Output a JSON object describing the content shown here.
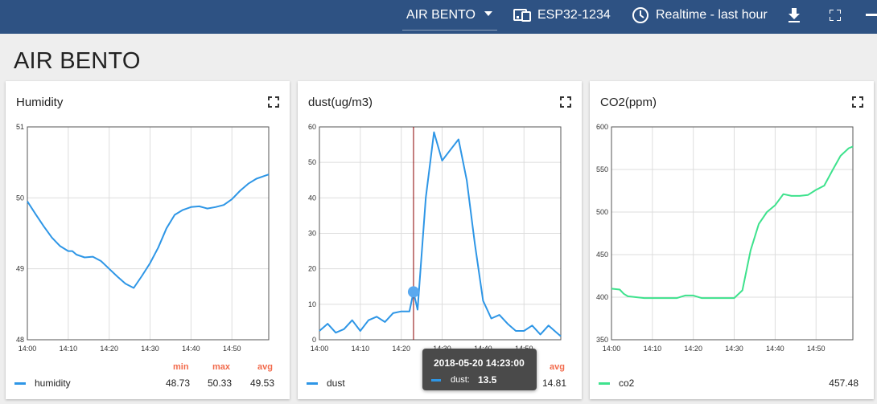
{
  "topbar": {
    "dashboard": "AIR BENTO",
    "device": "ESP32-1234",
    "timerange": "Realtime - last hour",
    "icons": {
      "dashboard": "chevron-down-icon",
      "device": "device-icon",
      "time": "clock-icon",
      "download": "download-icon",
      "fullscreen": "fullscreen-icon",
      "more": "more-icon"
    }
  },
  "page": {
    "title": "AIR BENTO"
  },
  "colors": {
    "header": "#2e5283",
    "blue": "#2e96e6",
    "green": "#3ee28d",
    "stat_head": "#f26a4b",
    "cursor": "#8b0000"
  },
  "cards": [
    {
      "title": "Humidity",
      "legend": {
        "name": "humidity",
        "min_label": "min",
        "max_label": "max",
        "avg_label": "avg",
        "min": "48.73",
        "max": "50.33",
        "avg": "49.53"
      }
    },
    {
      "title": "dust(ug/m3)",
      "legend": {
        "name": "dust",
        "avg_label": "avg",
        "avg": "14.81"
      },
      "tooltip": {
        "time": "2018-05-20 14:23:00",
        "name": "dust:",
        "value": "13.5"
      }
    },
    {
      "title": "CO2(ppm)",
      "legend": {
        "name": "co2",
        "avg": "457.48"
      }
    }
  ],
  "chart_data": [
    {
      "type": "line",
      "title": "Humidity",
      "x_ticks": [
        "14:00",
        "14:10",
        "14:20",
        "14:30",
        "14:40",
        "14:50"
      ],
      "y_ticks": [
        48,
        49,
        50,
        51
      ],
      "xlim": [
        0,
        59
      ],
      "ylim": [
        48,
        51
      ],
      "grid": true,
      "series": [
        {
          "name": "humidity",
          "x": [
            0,
            2,
            4,
            6,
            8,
            10,
            11,
            12,
            14,
            16,
            18,
            20,
            22,
            24,
            26,
            28,
            30,
            32,
            34,
            36,
            38,
            40,
            42,
            44,
            46,
            48,
            50,
            52,
            54,
            56,
            58,
            59
          ],
          "y": [
            49.95,
            49.77,
            49.6,
            49.44,
            49.32,
            49.25,
            49.25,
            49.2,
            49.16,
            49.17,
            49.11,
            49.0,
            48.89,
            48.79,
            48.73,
            48.9,
            49.08,
            49.3,
            49.57,
            49.76,
            49.83,
            49.87,
            49.88,
            49.85,
            49.87,
            49.9,
            49.98,
            50.1,
            50.2,
            50.27,
            50.31,
            50.33
          ]
        }
      ]
    },
    {
      "type": "line",
      "title": "dust(ug/m3)",
      "x_ticks": [
        "14:00",
        "14:10",
        "14:20",
        "14:30",
        "14:40",
        "14:50"
      ],
      "y_ticks": [
        0,
        10,
        20,
        30,
        40,
        50,
        60
      ],
      "xlim": [
        0,
        59
      ],
      "ylim": [
        0,
        60
      ],
      "grid": true,
      "cursor_x": 23,
      "highlight": {
        "x": 23,
        "y": 13.5
      },
      "series": [
        {
          "name": "dust",
          "x": [
            0,
            2,
            4,
            6,
            8,
            10,
            12,
            14,
            16,
            18,
            20,
            22,
            23,
            24,
            26,
            28,
            30,
            32,
            34,
            36,
            38,
            40,
            42,
            44,
            46,
            48,
            50,
            52,
            54,
            56,
            58,
            59
          ],
          "y": [
            2.5,
            4.5,
            2,
            3,
            5.5,
            2.5,
            5.5,
            6.5,
            5,
            7.5,
            8,
            8,
            13.5,
            8.5,
            40,
            58.5,
            50.5,
            53.5,
            56.5,
            45,
            27,
            11,
            6,
            7,
            4.5,
            2.5,
            2.5,
            4,
            1.5,
            4,
            2,
            1
          ]
        }
      ]
    },
    {
      "type": "line",
      "title": "CO2(ppm)",
      "x_ticks": [
        "14:00",
        "14:10",
        "14:20",
        "14:30",
        "14:40",
        "14:50"
      ],
      "y_ticks": [
        350,
        400,
        450,
        500,
        550,
        600
      ],
      "xlim": [
        0,
        59
      ],
      "ylim": [
        350,
        600
      ],
      "grid": true,
      "series": [
        {
          "name": "co2",
          "x": [
            0,
            2,
            3,
            4,
            6,
            8,
            10,
            12,
            14,
            16,
            18,
            20,
            22,
            24,
            26,
            28,
            29,
            30,
            32,
            34,
            36,
            38,
            40,
            42,
            44,
            46,
            48,
            50,
            52,
            54,
            56,
            58,
            59
          ],
          "y": [
            410,
            409,
            404,
            401,
            400,
            399,
            399,
            399,
            399,
            399,
            402,
            402,
            399,
            399,
            399,
            399,
            399,
            399,
            408,
            455,
            486,
            500,
            508,
            521,
            519,
            519,
            520,
            526,
            531,
            549,
            566,
            575,
            577
          ]
        }
      ]
    }
  ]
}
